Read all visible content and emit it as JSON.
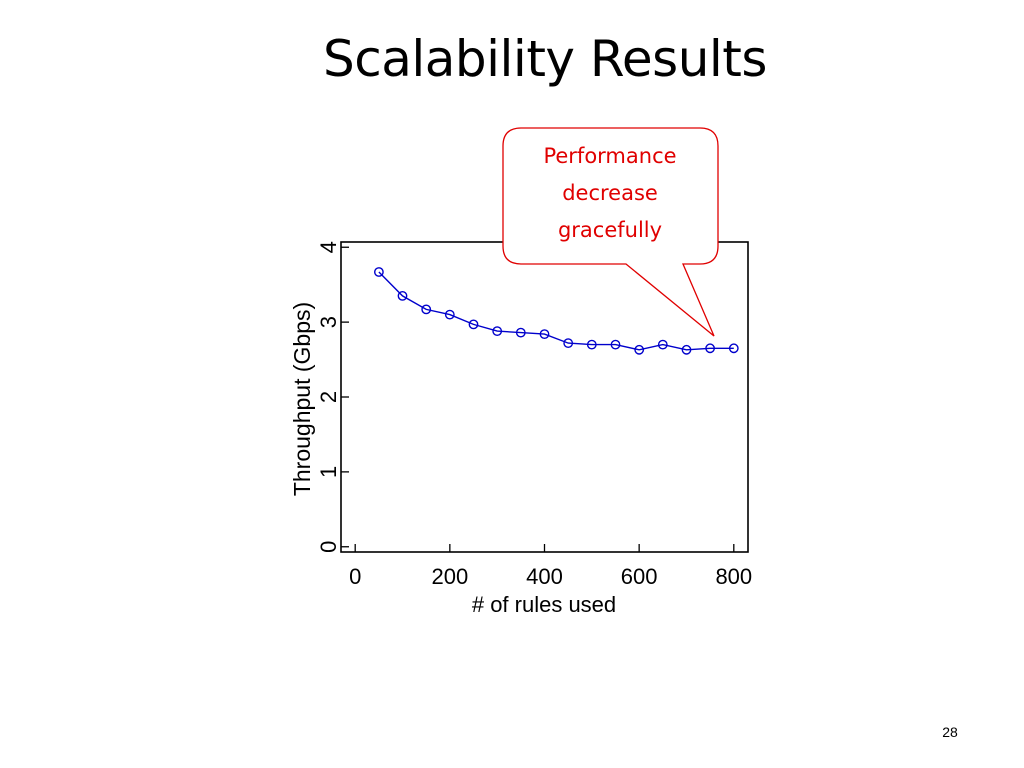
{
  "slide": {
    "title": "Scalability Results",
    "page_number": "28",
    "callout": {
      "lines": [
        "Performance",
        "decrease",
        "gracefully"
      ],
      "color": "#e00000"
    }
  },
  "chart_data": {
    "type": "line",
    "title": "",
    "xlabel": "# of rules used",
    "ylabel": "Throughput (Gbps)",
    "xlim": [
      -30,
      830
    ],
    "ylim": [
      -0.07,
      4.07
    ],
    "xticks": [
      0,
      200,
      400,
      600,
      800
    ],
    "yticks": [
      0,
      1,
      2,
      3,
      4
    ],
    "grid": false,
    "legend": "none",
    "marker": "open-circle",
    "series_color": "#0000cc",
    "series": [
      {
        "x": [
          50,
          100,
          150,
          200,
          250,
          300,
          350,
          400,
          450,
          500,
          550,
          600,
          650,
          700,
          750,
          800
        ],
        "y": [
          3.67,
          3.35,
          3.17,
          3.1,
          2.97,
          2.88,
          2.86,
          2.84,
          2.72,
          2.7,
          2.7,
          2.63,
          2.7,
          2.63,
          2.65,
          2.65
        ]
      }
    ]
  }
}
